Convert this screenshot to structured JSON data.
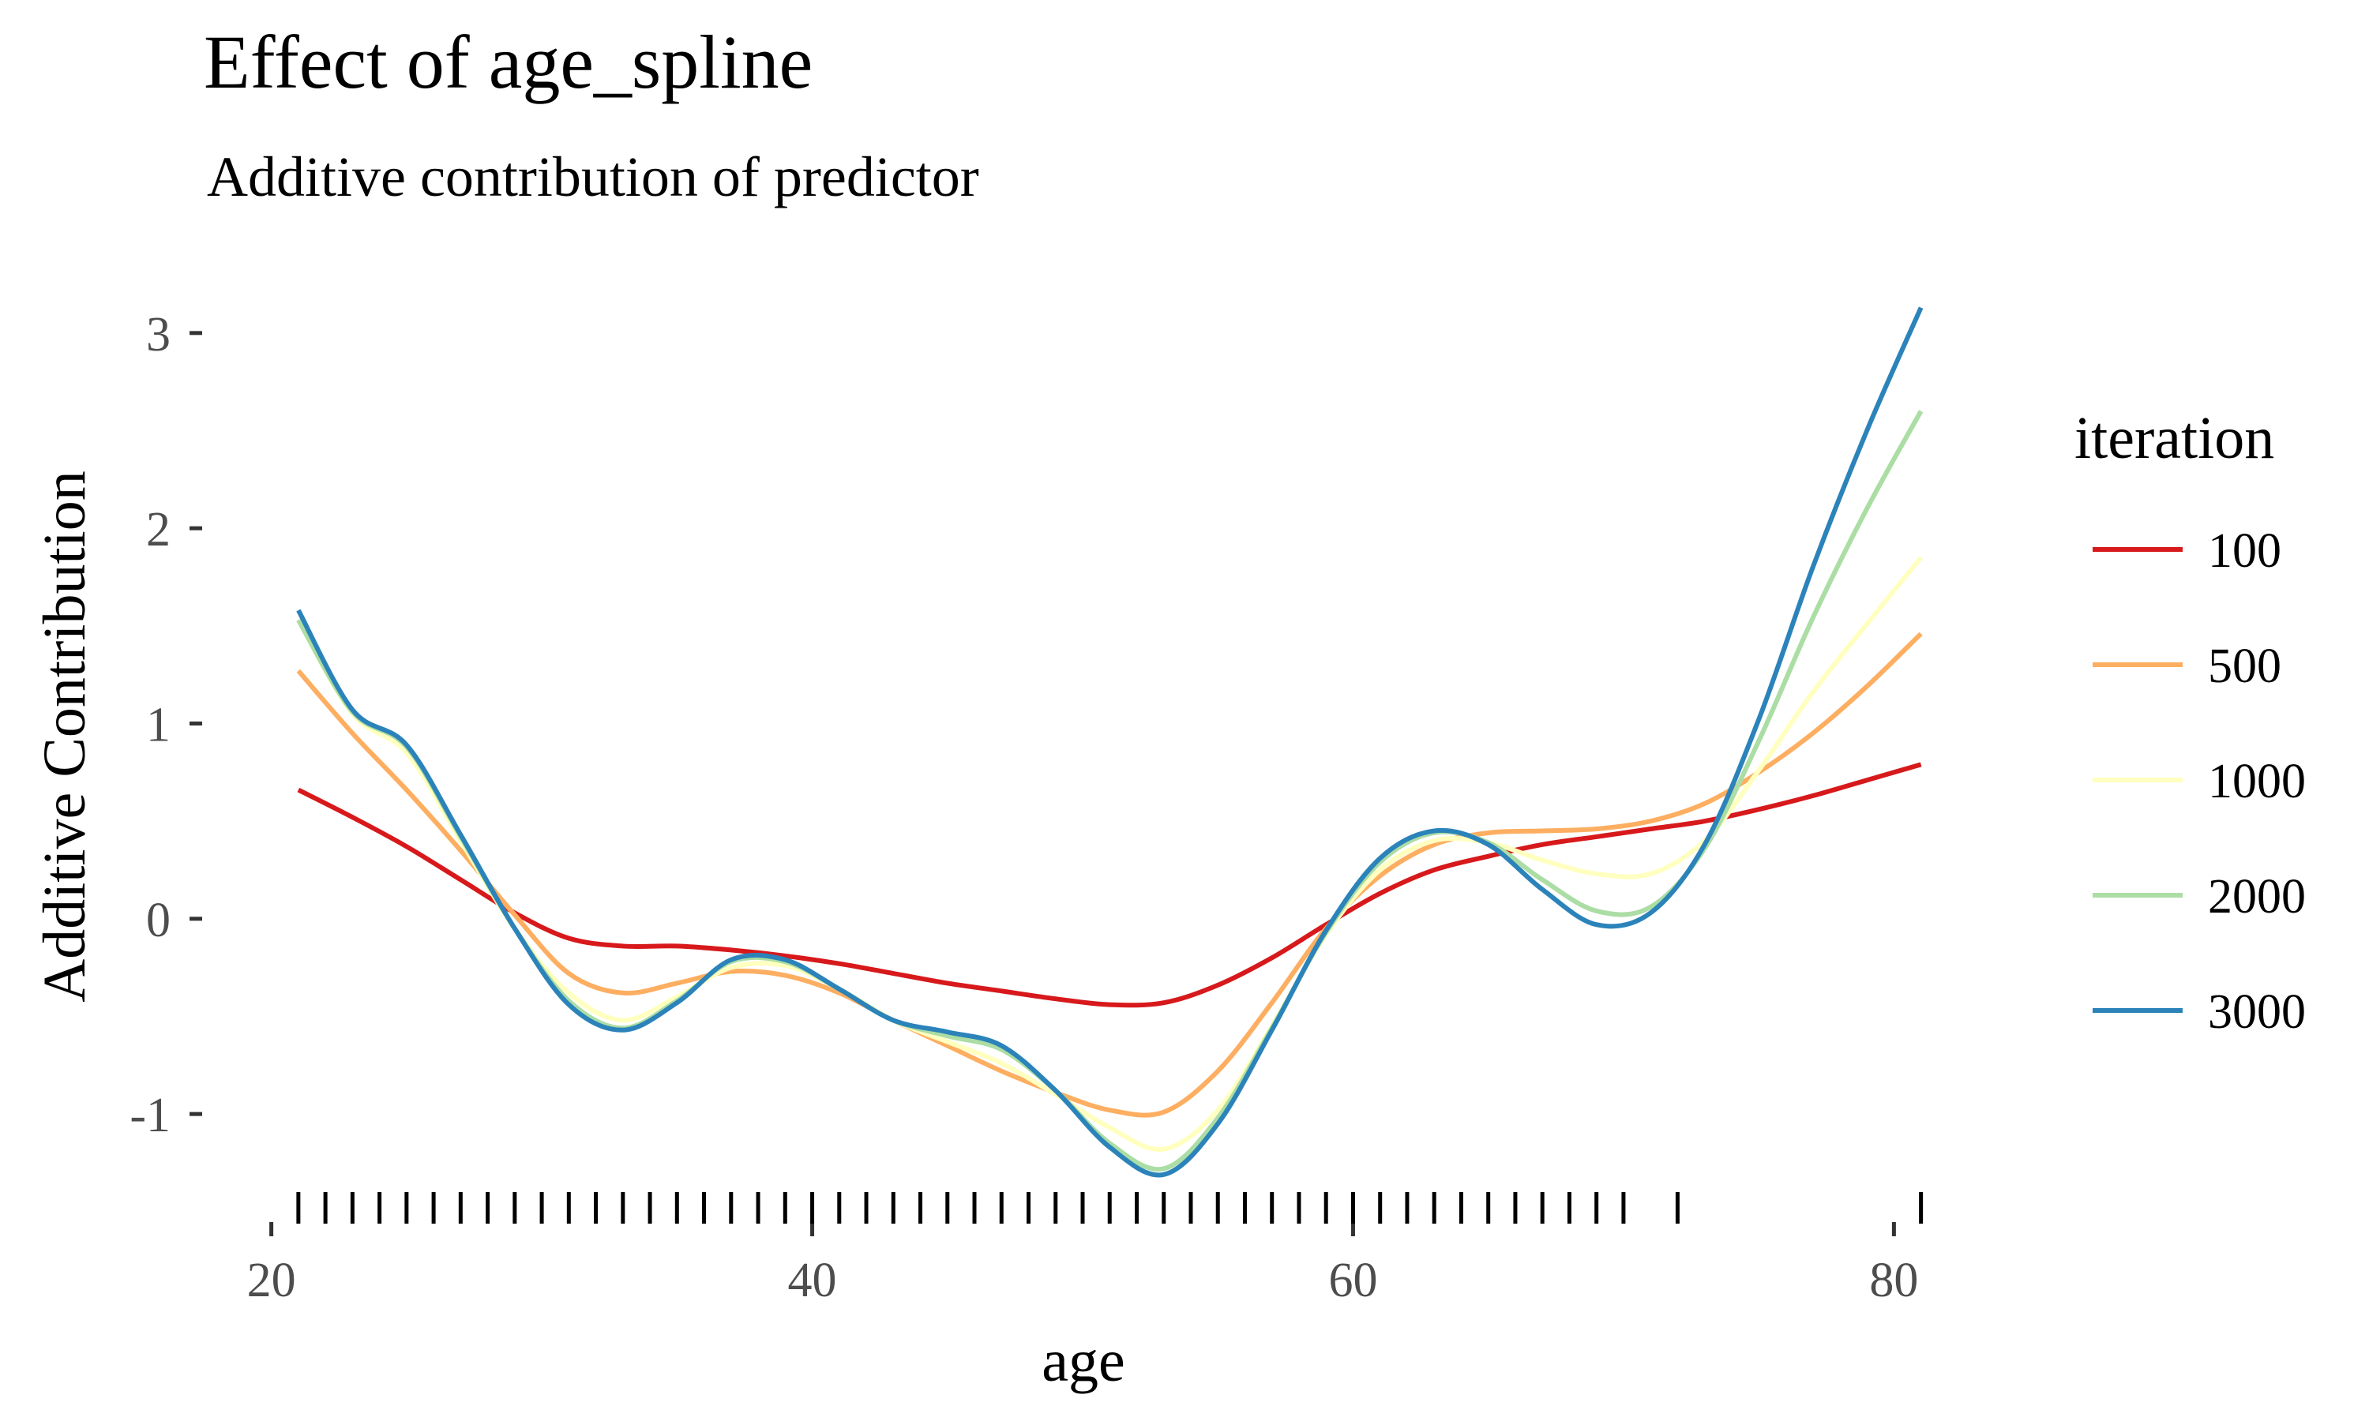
{
  "chart_data": {
    "type": "line",
    "title": "Effect of age_spline",
    "subtitle": "Additive contribution of predictor",
    "xlabel": "age",
    "ylabel": "Additive Contribution",
    "xlim": [
      17.5,
      82.5
    ],
    "ylim": [
      -1.42,
      3.25
    ],
    "x_ticks": [
      20,
      40,
      60,
      80
    ],
    "x_tick_labels": [
      "20",
      "40",
      "60",
      "80"
    ],
    "y_ticks": [
      -1,
      0,
      1,
      2,
      3
    ],
    "y_tick_labels": [
      "-1",
      "0",
      "1",
      "2",
      "3"
    ],
    "grid": false,
    "legend": {
      "title": "iteration",
      "position": "right"
    },
    "rug": [
      21,
      22,
      23,
      24,
      25,
      26,
      27,
      28,
      29,
      30,
      31,
      32,
      33,
      34,
      35,
      36,
      37,
      38,
      39,
      40,
      41,
      42,
      43,
      44,
      45,
      46,
      47,
      48,
      49,
      50,
      51,
      52,
      53,
      54,
      55,
      56,
      57,
      58,
      59,
      60,
      61,
      62,
      63,
      64,
      65,
      66,
      67,
      68,
      69,
      70,
      72,
      81
    ],
    "series": [
      {
        "name": "100",
        "color": "#d7191c",
        "x": [
          21,
          23,
          25,
          27,
          29,
          31,
          33,
          35,
          37,
          39,
          41,
          43,
          45,
          47,
          49,
          51,
          53,
          55,
          57,
          59,
          61,
          63,
          65,
          67,
          69,
          71,
          73,
          75,
          77,
          79,
          81
        ],
        "y": [
          0.66,
          0.52,
          0.37,
          0.2,
          0.03,
          -0.1,
          -0.14,
          -0.14,
          -0.16,
          -0.19,
          -0.23,
          -0.28,
          -0.33,
          -0.37,
          -0.41,
          -0.44,
          -0.43,
          -0.34,
          -0.2,
          -0.03,
          0.13,
          0.25,
          0.32,
          0.38,
          0.42,
          0.46,
          0.5,
          0.56,
          0.63,
          0.71,
          0.79
        ]
      },
      {
        "name": "500",
        "color": "#fdae61",
        "x": [
          21,
          23,
          25,
          27,
          29,
          31,
          33,
          35,
          37,
          39,
          41,
          43,
          45,
          47,
          49,
          51,
          53,
          55,
          57,
          59,
          61,
          63,
          65,
          67,
          69,
          71,
          73,
          75,
          77,
          79,
          81
        ],
        "y": [
          1.27,
          0.95,
          0.66,
          0.35,
          0.02,
          -0.28,
          -0.38,
          -0.33,
          -0.27,
          -0.29,
          -0.38,
          -0.52,
          -0.65,
          -0.78,
          -0.89,
          -0.98,
          -0.99,
          -0.78,
          -0.43,
          -0.05,
          0.22,
          0.38,
          0.44,
          0.45,
          0.46,
          0.5,
          0.59,
          0.75,
          0.95,
          1.19,
          1.46
        ]
      },
      {
        "name": "1000",
        "color": "#ffffbf",
        "x": [
          21,
          23,
          25,
          27,
          29,
          31,
          33,
          35,
          37,
          39,
          41,
          43,
          45,
          47,
          49,
          51,
          53,
          55,
          57,
          59,
          61,
          63,
          65,
          67,
          69,
          71,
          73,
          75,
          77,
          79,
          81
        ],
        "y": [
          1.53,
          1.05,
          0.85,
          0.4,
          -0.05,
          -0.38,
          -0.52,
          -0.4,
          -0.25,
          -0.24,
          -0.36,
          -0.52,
          -0.63,
          -0.74,
          -0.9,
          -1.07,
          -1.18,
          -0.98,
          -0.55,
          -0.08,
          0.25,
          0.4,
          0.39,
          0.3,
          0.23,
          0.23,
          0.4,
          0.76,
          1.16,
          1.51,
          1.85
        ]
      },
      {
        "name": "2000",
        "color": "#abdda4",
        "x": [
          21,
          23,
          25,
          27,
          29,
          31,
          33,
          35,
          37,
          39,
          41,
          43,
          45,
          47,
          49,
          51,
          53,
          55,
          57,
          59,
          61,
          63,
          65,
          67,
          69,
          71,
          73,
          75,
          77,
          79,
          81
        ],
        "y": [
          1.53,
          1.06,
          0.88,
          0.42,
          -0.05,
          -0.42,
          -0.56,
          -0.42,
          -0.22,
          -0.22,
          -0.36,
          -0.52,
          -0.6,
          -0.67,
          -0.88,
          -1.15,
          -1.28,
          -1.02,
          -0.56,
          -0.07,
          0.29,
          0.44,
          0.39,
          0.2,
          0.04,
          0.06,
          0.36,
          0.91,
          1.54,
          2.1,
          2.6
        ]
      },
      {
        "name": "3000",
        "color": "#2b83ba",
        "x": [
          21,
          23,
          25,
          27,
          29,
          31,
          33,
          35,
          37,
          39,
          41,
          43,
          45,
          47,
          49,
          51,
          53,
          55,
          57,
          59,
          61,
          63,
          65,
          67,
          69,
          71,
          73,
          75,
          77,
          79,
          81
        ],
        "y": [
          1.58,
          1.07,
          0.89,
          0.43,
          -0.05,
          -0.44,
          -0.57,
          -0.43,
          -0.21,
          -0.21,
          -0.36,
          -0.52,
          -0.58,
          -0.65,
          -0.88,
          -1.17,
          -1.31,
          -1.05,
          -0.57,
          -0.06,
          0.31,
          0.45,
          0.38,
          0.15,
          -0.03,
          0.03,
          0.38,
          1.02,
          1.8,
          2.5,
          3.13
        ]
      }
    ]
  }
}
